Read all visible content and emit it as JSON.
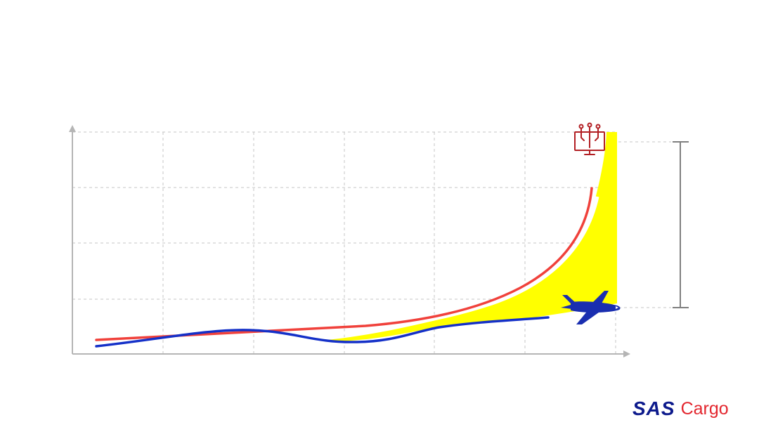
{
  "colors": {
    "axis": "#b5b5b5",
    "grid": "#c4c4c4",
    "red_curve": "#f0413b",
    "blue_curve": "#1430c8",
    "gap_fill": "#ffff00",
    "bracket": "#7f7f7f",
    "icon_red": "#b21f24",
    "plane_blue": "#1a2eb0",
    "logo_blue": "#0d1a8c",
    "logo_red": "#e3262e"
  },
  "icons": {
    "top": "computer-network-icon",
    "bottom": "airplane-icon"
  },
  "logo": {
    "brand": "SAS",
    "product": "Cargo"
  }
}
